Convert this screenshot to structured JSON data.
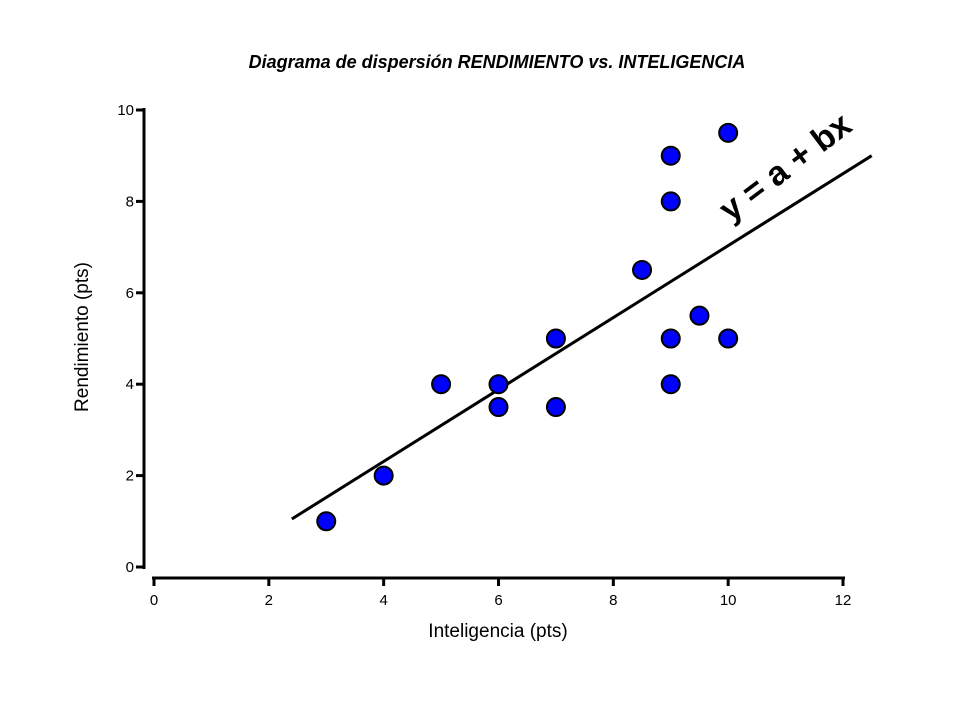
{
  "chart_data": {
    "type": "scatter",
    "title": "Diagrama de dispersión RENDIMIENTO vs. INTELIGENCIA",
    "xlabel": "Inteligencia (pts)",
    "ylabel": "Rendimiento (pts)",
    "xlim": [
      0,
      12
    ],
    "ylim": [
      0,
      10
    ],
    "xticks": [
      "0",
      "2",
      "4",
      "6",
      "8",
      "10",
      "12"
    ],
    "yticks": [
      "0",
      "2",
      "4",
      "6",
      "8",
      "10"
    ],
    "grid": false,
    "point_color": "#0000ff",
    "points": [
      {
        "x": 3,
        "y": 1
      },
      {
        "x": 4,
        "y": 2
      },
      {
        "x": 5,
        "y": 4
      },
      {
        "x": 6,
        "y": 4
      },
      {
        "x": 6,
        "y": 3.5
      },
      {
        "x": 7,
        "y": 5
      },
      {
        "x": 7,
        "y": 3.5
      },
      {
        "x": 8.5,
        "y": 6.5
      },
      {
        "x": 9,
        "y": 9
      },
      {
        "x": 9,
        "y": 8
      },
      {
        "x": 9,
        "y": 5
      },
      {
        "x": 9,
        "y": 4
      },
      {
        "x": 9.5,
        "y": 5.5
      },
      {
        "x": 10,
        "y": 9.5
      },
      {
        "x": 10,
        "y": 5
      }
    ],
    "regression_line": {
      "x": [
        2.4,
        12.5
      ],
      "y": [
        1.05,
        9.0
      ]
    },
    "annotation": "y = a + bx"
  }
}
